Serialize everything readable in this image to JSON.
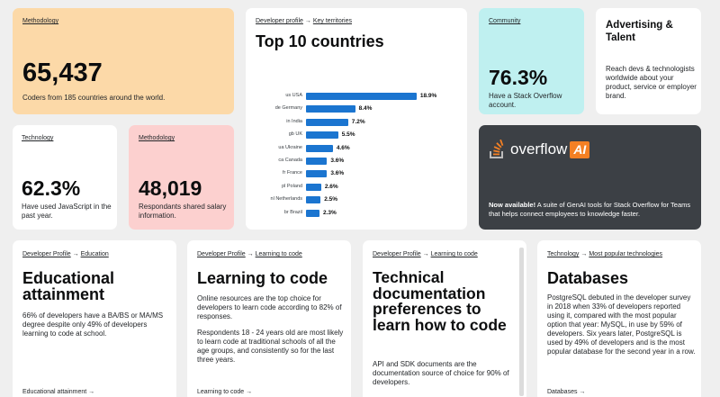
{
  "methodology_card": {
    "link": "Methodology",
    "value": "65,437",
    "desc": "Coders from 185 countries around the world."
  },
  "technology_card": {
    "link": "Technology",
    "value": "62.3%",
    "desc": "Have used JavaScript in the past year."
  },
  "salary_card": {
    "link": "Methodology",
    "value": "48,019",
    "desc": "Respondants shared salary information."
  },
  "countries_card": {
    "crumb_a": "Developer profile",
    "arrow": "→",
    "crumb_b": "Key territories",
    "title": "Top 10 countries"
  },
  "chart_data": {
    "type": "bar",
    "orientation": "horizontal",
    "categories": [
      "us USA",
      "de Germany",
      "in India",
      "gb UK",
      "ua Ukraine",
      "ca Canada",
      "fr France",
      "pl Poland",
      "nl Netherlands",
      "br Brazil"
    ],
    "values": [
      18.9,
      8.4,
      7.2,
      5.5,
      4.6,
      3.6,
      3.6,
      2.6,
      2.5,
      2.3
    ],
    "value_labels": [
      "18.9%",
      "8.4%",
      "7.2%",
      "5.5%",
      "4.6%",
      "3.6%",
      "3.6%",
      "2.6%",
      "2.5%",
      "2.3%"
    ],
    "bar_color": "#1b75d0",
    "xlim": [
      0,
      20
    ]
  },
  "community_card": {
    "link": "Community",
    "value": "76.3%",
    "desc": "Have a Stack Overflow account."
  },
  "advertising_card": {
    "title": "Advertising & Talent",
    "desc": "Reach devs & technologists worldwide about your product, service or employer brand."
  },
  "overflowai_card": {
    "logo_text": "overflow",
    "logo_badge": "AI",
    "bold": "Now available!",
    "desc": " A suite of GenAI tools for Stack Overflow for Teams that helps connect employees to knowledge faster."
  },
  "education_card": {
    "crumb_a": "Developer Profile",
    "arrow": "→",
    "crumb_b": "Education",
    "title": "Educational attainment",
    "desc": "66% of developers have a BA/BS or MA/MS degree despite only 49% of developers learning to code at school.",
    "footer": "Educational attainment",
    "footer_arrow": "→"
  },
  "learning_card": {
    "crumb_a": "Developer Profile",
    "arrow": "→",
    "crumb_b": "Learning to code",
    "title": "Learning to code",
    "desc1": "Online resources are the top choice for developers to learn code according to 82% of responses.",
    "desc2": "Respondents 18 - 24 years old are most likely to learn code at traditional schools of all the age groups, and consistently so for the last three years.",
    "footer": "Learning to code",
    "footer_arrow": "→"
  },
  "techdoc_card": {
    "crumb_a": "Developer Profile",
    "arrow": "→",
    "crumb_b": "Learning to code",
    "title": "Technical documentation preferences to learn how to code",
    "desc": "API and SDK documents are the documentation source of choice for 90% of developers."
  },
  "databases_card": {
    "crumb_a": "Technology",
    "arrow": "→",
    "crumb_b": "Most popular technologies",
    "title": "Databases",
    "desc": "PostgreSQL debuted in the developer survey in 2018 when 33% of developers reported using it, compared with the most popular option that year: MySQL, in use by 59% of developers. Six years later, PostgreSQL is used by 49% of developers and is the most popular database for the second year in a row.",
    "footer": "Databases",
    "footer_arrow": "→"
  },
  "colors": {
    "peach": "#fcd9a8",
    "pink": "#fcd0cf",
    "cyan": "#bff0f0",
    "dark": "#3c4045",
    "accent_orange": "#f48024"
  }
}
